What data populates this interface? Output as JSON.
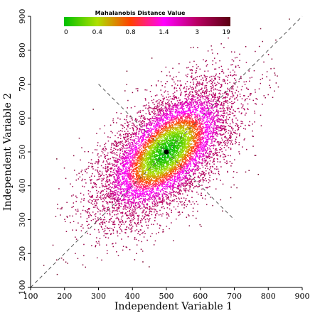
{
  "chart_data": {
    "type": "scatter",
    "title": "",
    "xlabel": "Independent Variable 1",
    "ylabel": "Independent Variable 2",
    "xlim": [
      100,
      900
    ],
    "ylim": [
      100,
      900
    ],
    "xticks": [
      "100",
      "200",
      "300",
      "400",
      "500",
      "600",
      "700",
      "800",
      "900"
    ],
    "yticks": [
      "100",
      "200",
      "300",
      "400",
      "500",
      "600",
      "700",
      "800",
      "900"
    ],
    "grid": false,
    "distribution": {
      "mean": [
        500,
        500
      ],
      "sd_x": 100,
      "sd_y": 100,
      "correlation": 0.6,
      "n_points": 9000
    },
    "center_point": {
      "x": 500,
      "y": 500
    },
    "reference_lines": [
      {
        "name": "diagonal",
        "from": [
          100,
          100
        ],
        "to": [
          900,
          900
        ],
        "style": "dashed"
      },
      {
        "name": "minor-axis",
        "from": [
          300,
          700
        ],
        "to": [
          700,
          300
        ],
        "style": "dashed"
      }
    ],
    "colorbar": {
      "title": "Mahalanobis Distance Value",
      "tick_labels": [
        "0",
        "0.4",
        "0.8",
        "1.4",
        "3",
        "19"
      ],
      "tick_values": [
        0,
        0.4,
        0.8,
        1.4,
        3,
        19
      ],
      "stops": [
        {
          "value": 0,
          "color": "#00c000"
        },
        {
          "value": 0.4,
          "color": "#aee000"
        },
        {
          "value": 0.8,
          "color": "#ff4000"
        },
        {
          "value": 1.4,
          "color": "#ff00ff"
        },
        {
          "value": 3,
          "color": "#b80062"
        },
        {
          "value": 19,
          "color": "#5a0010"
        }
      ]
    }
  }
}
